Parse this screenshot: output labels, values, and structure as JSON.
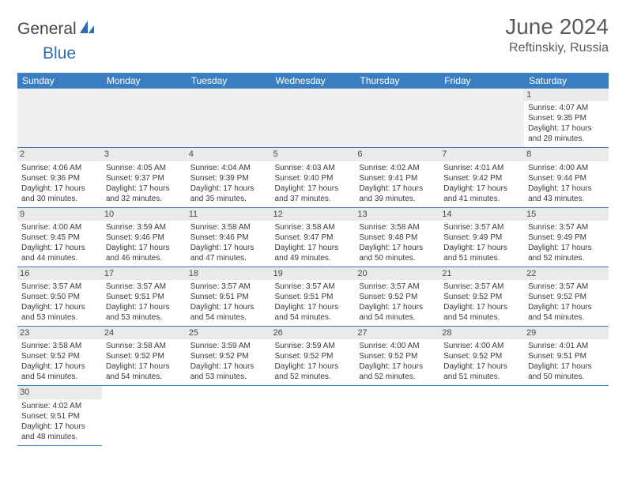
{
  "brand": {
    "part1": "General",
    "part2": "Blue"
  },
  "title": "June 2024",
  "location": "Reftinskiy, Russia",
  "colors": {
    "header_bg": "#3b7ec0",
    "header_text": "#ffffff",
    "daynum_bg": "#eaeaea",
    "border": "#3b7ec0",
    "logo_blue": "#2f6db3",
    "text": "#3a3a3a"
  },
  "day_names": [
    "Sunday",
    "Monday",
    "Tuesday",
    "Wednesday",
    "Thursday",
    "Friday",
    "Saturday"
  ],
  "weeks": [
    [
      null,
      null,
      null,
      null,
      null,
      null,
      {
        "n": "1",
        "sr": "4:07 AM",
        "ss": "9:35 PM",
        "dl": "17 hours and 28 minutes."
      }
    ],
    [
      {
        "n": "2",
        "sr": "4:06 AM",
        "ss": "9:36 PM",
        "dl": "17 hours and 30 minutes."
      },
      {
        "n": "3",
        "sr": "4:05 AM",
        "ss": "9:37 PM",
        "dl": "17 hours and 32 minutes."
      },
      {
        "n": "4",
        "sr": "4:04 AM",
        "ss": "9:39 PM",
        "dl": "17 hours and 35 minutes."
      },
      {
        "n": "5",
        "sr": "4:03 AM",
        "ss": "9:40 PM",
        "dl": "17 hours and 37 minutes."
      },
      {
        "n": "6",
        "sr": "4:02 AM",
        "ss": "9:41 PM",
        "dl": "17 hours and 39 minutes."
      },
      {
        "n": "7",
        "sr": "4:01 AM",
        "ss": "9:42 PM",
        "dl": "17 hours and 41 minutes."
      },
      {
        "n": "8",
        "sr": "4:00 AM",
        "ss": "9:44 PM",
        "dl": "17 hours and 43 minutes."
      }
    ],
    [
      {
        "n": "9",
        "sr": "4:00 AM",
        "ss": "9:45 PM",
        "dl": "17 hours and 44 minutes."
      },
      {
        "n": "10",
        "sr": "3:59 AM",
        "ss": "9:46 PM",
        "dl": "17 hours and 46 minutes."
      },
      {
        "n": "11",
        "sr": "3:58 AM",
        "ss": "9:46 PM",
        "dl": "17 hours and 47 minutes."
      },
      {
        "n": "12",
        "sr": "3:58 AM",
        "ss": "9:47 PM",
        "dl": "17 hours and 49 minutes."
      },
      {
        "n": "13",
        "sr": "3:58 AM",
        "ss": "9:48 PM",
        "dl": "17 hours and 50 minutes."
      },
      {
        "n": "14",
        "sr": "3:57 AM",
        "ss": "9:49 PM",
        "dl": "17 hours and 51 minutes."
      },
      {
        "n": "15",
        "sr": "3:57 AM",
        "ss": "9:49 PM",
        "dl": "17 hours and 52 minutes."
      }
    ],
    [
      {
        "n": "16",
        "sr": "3:57 AM",
        "ss": "9:50 PM",
        "dl": "17 hours and 53 minutes."
      },
      {
        "n": "17",
        "sr": "3:57 AM",
        "ss": "9:51 PM",
        "dl": "17 hours and 53 minutes."
      },
      {
        "n": "18",
        "sr": "3:57 AM",
        "ss": "9:51 PM",
        "dl": "17 hours and 54 minutes."
      },
      {
        "n": "19",
        "sr": "3:57 AM",
        "ss": "9:51 PM",
        "dl": "17 hours and 54 minutes."
      },
      {
        "n": "20",
        "sr": "3:57 AM",
        "ss": "9:52 PM",
        "dl": "17 hours and 54 minutes."
      },
      {
        "n": "21",
        "sr": "3:57 AM",
        "ss": "9:52 PM",
        "dl": "17 hours and 54 minutes."
      },
      {
        "n": "22",
        "sr": "3:57 AM",
        "ss": "9:52 PM",
        "dl": "17 hours and 54 minutes."
      }
    ],
    [
      {
        "n": "23",
        "sr": "3:58 AM",
        "ss": "9:52 PM",
        "dl": "17 hours and 54 minutes."
      },
      {
        "n": "24",
        "sr": "3:58 AM",
        "ss": "9:52 PM",
        "dl": "17 hours and 54 minutes."
      },
      {
        "n": "25",
        "sr": "3:59 AM",
        "ss": "9:52 PM",
        "dl": "17 hours and 53 minutes."
      },
      {
        "n": "26",
        "sr": "3:59 AM",
        "ss": "9:52 PM",
        "dl": "17 hours and 52 minutes."
      },
      {
        "n": "27",
        "sr": "4:00 AM",
        "ss": "9:52 PM",
        "dl": "17 hours and 52 minutes."
      },
      {
        "n": "28",
        "sr": "4:00 AM",
        "ss": "9:52 PM",
        "dl": "17 hours and 51 minutes."
      },
      {
        "n": "29",
        "sr": "4:01 AM",
        "ss": "9:51 PM",
        "dl": "17 hours and 50 minutes."
      }
    ],
    [
      {
        "n": "30",
        "sr": "4:02 AM",
        "ss": "9:51 PM",
        "dl": "17 hours and 48 minutes."
      },
      null,
      null,
      null,
      null,
      null,
      null
    ]
  ],
  "labels": {
    "sunrise": "Sunrise:",
    "sunset": "Sunset:",
    "daylight": "Daylight:"
  }
}
